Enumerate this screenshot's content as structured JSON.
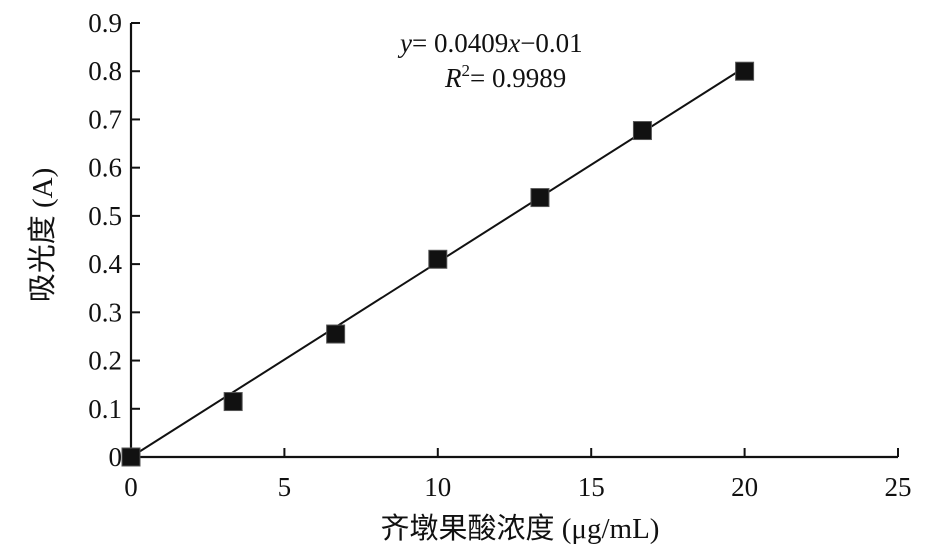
{
  "chart_data": {
    "type": "scatter",
    "xlabel": "齐墩果酸浓度 (μg/mL)",
    "ylabel": "吸光度 (A)",
    "xlim": [
      0,
      25
    ],
    "ylim": [
      0,
      0.9
    ],
    "x_ticks": [
      0,
      5,
      10,
      15,
      20,
      25
    ],
    "x_tick_labels": [
      "0",
      "5",
      "10",
      "15",
      "20",
      "25"
    ],
    "y_ticks": [
      0,
      0.1,
      0.2,
      0.3,
      0.4,
      0.5,
      0.6,
      0.7,
      0.8,
      0.9
    ],
    "y_tick_labels": [
      "0",
      "0.1",
      "0.2",
      "0.3",
      "0.4",
      "0.5",
      "0.6",
      "0.7",
      "0.8",
      "0.9"
    ],
    "grid": false,
    "series": [
      {
        "marker": "square",
        "color": "#111111",
        "x": [
          0,
          3.33,
          6.67,
          10,
          13.33,
          16.67,
          20
        ],
        "y": [
          0,
          0.115,
          0.255,
          0.41,
          0.538,
          0.677,
          0.8
        ]
      }
    ],
    "fit_line": {
      "slope": 0.0409,
      "intercept": -0.01,
      "x_range": [
        0,
        20
      ],
      "color": "#111111"
    },
    "annotations": {
      "equation": {
        "y_var": "y",
        "eq_rhs": "= 0.0409",
        "x_var": "x",
        "eq_tail": "−0.01"
      },
      "r_squared": {
        "r_var": "R",
        "sup": "2",
        "value": "= 0.9989"
      }
    }
  }
}
